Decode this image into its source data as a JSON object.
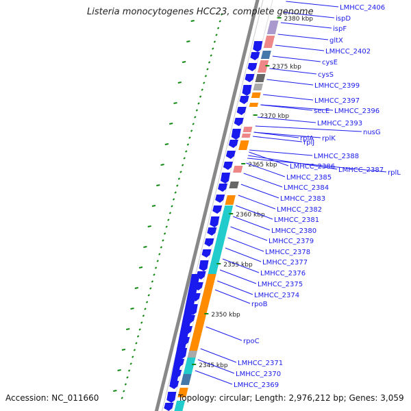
{
  "title": "Listeria monocytogenes HCC23, complete genome",
  "accession_text": "Accession: NC_011660",
  "topology_text": "Topology: circular; Length: 2,976,212 bp; Genes: 3,059",
  "colors": {
    "backbone": "#888888",
    "cds_forward": "#1a1aee",
    "label_text": "#1a1aee",
    "tick_green": "#118811",
    "orange": "#ff8c00",
    "cyan": "#22cccc",
    "pink": "#ee8888",
    "gray": "#666666",
    "steel": "#4477aa"
  },
  "kbp_ticks": [
    "2380 kbp",
    "2375 kbp",
    "2370 kbp",
    "2365 kbp",
    "2360 kbp",
    "2355 kbp",
    "2350 kbp",
    "2345 kbp"
  ],
  "gene_labels": [
    "LMHCC_2406",
    "ispD",
    "ispF",
    "gltX",
    "LMHCC_2402",
    "cysE",
    "cysS",
    "LMHCC_2399",
    "LMHCC_2397",
    "secE",
    "LMHCC_2396",
    "LMHCC_2393",
    "nusG",
    "rplA",
    "rplK",
    "rplJ",
    "LMHCC_2388",
    "LMHCC_2386",
    "LMHCC_2387",
    "rplL",
    "LMHCC_2385",
    "LMHCC_2384",
    "LMHCC_2383",
    "LMHCC_2382",
    "LMHCC_2381",
    "LMHCC_2380",
    "LMHCC_2379",
    "LMHCC_2378",
    "LMHCC_2377",
    "LMHCC_2376",
    "LMHCC_2375",
    "LMHCC_2374",
    "rpoB",
    "rpoC",
    "LMHCC_2371",
    "LMHCC_2370",
    "LMHCC_2369"
  ]
}
